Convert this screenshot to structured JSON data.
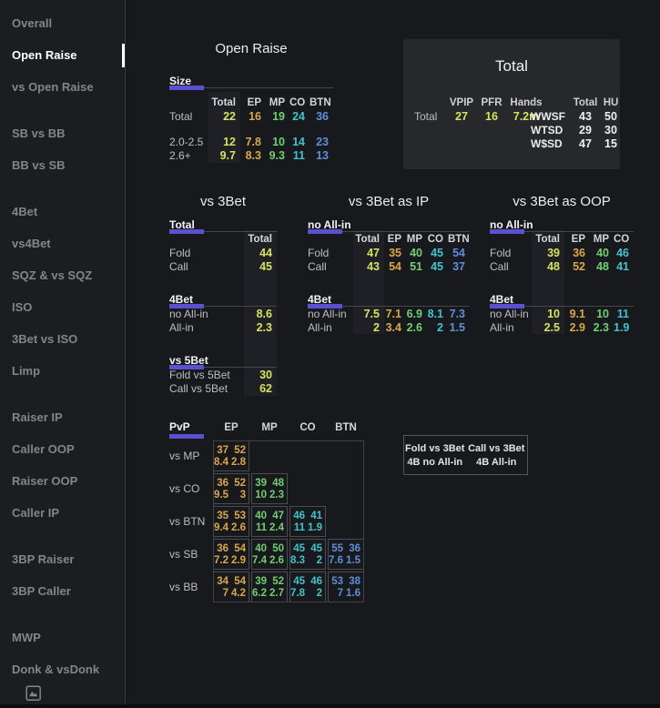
{
  "colors": {
    "accent": "#5a50d2",
    "total": "#d9e35a",
    "ep": "#d9a845",
    "mp": "#6fd06f",
    "co": "#3fc5cd",
    "btn": "#5b90d9"
  },
  "sidebar": {
    "footer_icon": "image-icon",
    "groups": [
      {
        "items": [
          {
            "label": "Overall",
            "active": false
          },
          {
            "label": "Open Raise",
            "active": true
          },
          {
            "label": "vs Open Raise",
            "active": false
          }
        ]
      },
      {
        "items": [
          {
            "label": "SB vs BB",
            "active": false
          },
          {
            "label": "BB vs SB",
            "active": false
          }
        ]
      },
      {
        "items": [
          {
            "label": "4Bet",
            "active": false
          },
          {
            "label": "vs4Bet",
            "active": false
          },
          {
            "label": "SQZ & vs SQZ",
            "active": false
          },
          {
            "label": "ISO",
            "active": false
          },
          {
            "label": "3Bet vs ISO",
            "active": false
          },
          {
            "label": "Limp",
            "active": false
          }
        ]
      },
      {
        "items": [
          {
            "label": "Raiser IP",
            "active": false
          },
          {
            "label": "Caller OOP",
            "active": false
          },
          {
            "label": "Raiser OOP",
            "active": false
          },
          {
            "label": "Caller IP",
            "active": false
          }
        ]
      },
      {
        "items": [
          {
            "label": "3BP Raiser",
            "active": false
          },
          {
            "label": "3BP Caller",
            "active": false
          }
        ]
      },
      {
        "items": [
          {
            "label": "MWP",
            "active": false
          },
          {
            "label": "Donk & vsDonk",
            "active": false
          }
        ]
      }
    ]
  },
  "open_raise": {
    "title": "Open Raise",
    "section": "Size",
    "columns": [
      "Total",
      "EP",
      "MP",
      "CO",
      "BTN"
    ],
    "rows": [
      {
        "label": "Total",
        "values": [
          "22",
          "16",
          "19",
          "24",
          "36"
        ],
        "gap_after": true
      },
      {
        "label": "2.0-2.5",
        "values": [
          "12",
          "7.8",
          "10",
          "14",
          "23"
        ]
      },
      {
        "label": "2.6+",
        "values": [
          "9.7",
          "8.3",
          "9.3",
          "11",
          "13"
        ]
      }
    ]
  },
  "total_panel": {
    "title": "Total",
    "left": {
      "row_label": "Total",
      "columns": [
        "VPIP",
        "PFR",
        "Hands"
      ],
      "values": [
        "27",
        "16",
        "7.2m"
      ]
    },
    "right": {
      "columns": [
        "Total",
        "HU"
      ],
      "rows": [
        {
          "label": "WWSF",
          "values": [
            "43",
            "50"
          ]
        },
        {
          "label": "WTSD",
          "values": [
            "29",
            "30"
          ]
        },
        {
          "label": "W$SD",
          "values": [
            "47",
            "15"
          ]
        }
      ]
    }
  },
  "vs_3bet": {
    "title": "vs 3Bet",
    "sections": [
      {
        "label": "Total",
        "header": "Total",
        "rows": [
          {
            "label": "Fold",
            "value": "44"
          },
          {
            "label": "Call",
            "value": "45"
          }
        ]
      },
      {
        "label": "4Bet",
        "rows": [
          {
            "label": "no All-in",
            "value": "8.6"
          },
          {
            "label": "All-in",
            "value": "2.3"
          }
        ]
      },
      {
        "label": "vs 5Bet",
        "rows": [
          {
            "label": "Fold vs 5Bet",
            "value": "30"
          },
          {
            "label": "Call vs 5Bet",
            "value": "62"
          }
        ]
      }
    ]
  },
  "vs_3bet_ip": {
    "title": "vs 3Bet as IP",
    "sections": [
      {
        "label": "no All-in",
        "columns": [
          "Total",
          "EP",
          "MP",
          "CO",
          "BTN"
        ],
        "rows": [
          {
            "label": "Fold",
            "values": [
              "47",
              "35",
              "40",
              "45",
              "54"
            ]
          },
          {
            "label": "Call",
            "values": [
              "43",
              "54",
              "51",
              "45",
              "37"
            ]
          }
        ]
      },
      {
        "label": "4Bet",
        "rows": [
          {
            "label": "no All-in",
            "values": [
              "7.5",
              "7.1",
              "6.9",
              "8.1",
              "7.3"
            ]
          },
          {
            "label": "All-in",
            "values": [
              "2",
              "3.4",
              "2.6",
              "2",
              "1.5"
            ]
          }
        ]
      }
    ]
  },
  "vs_3bet_oop": {
    "title": "vs 3Bet as OOP",
    "sections": [
      {
        "label": "no All-in",
        "columns": [
          "Total",
          "EP",
          "MP",
          "CO"
        ],
        "rows": [
          {
            "label": "Fold",
            "values": [
              "39",
              "36",
              "40",
              "46"
            ]
          },
          {
            "label": "Call",
            "values": [
              "48",
              "52",
              "48",
              "41"
            ]
          }
        ]
      },
      {
        "label": "4Bet",
        "rows": [
          {
            "label": "no All-in",
            "values": [
              "10",
              "9.1",
              "10",
              "11"
            ]
          },
          {
            "label": "All-in",
            "values": [
              "2.5",
              "2.9",
              "2.3",
              "1.9"
            ]
          }
        ]
      }
    ]
  },
  "pvp": {
    "label": "PvP",
    "columns": [
      "EP",
      "MP",
      "CO",
      "BTN"
    ],
    "rows": [
      {
        "label": "vs MP",
        "cells": [
          {
            "top": [
              "37",
              "52"
            ],
            "bottom": [
              "8.4",
              "2.8"
            ]
          },
          null,
          null,
          null
        ]
      },
      {
        "label": "vs CO",
        "cells": [
          {
            "top": [
              "36",
              "52"
            ],
            "bottom": [
              "9.5",
              "3"
            ]
          },
          {
            "top": [
              "39",
              "48"
            ],
            "bottom": [
              "10",
              "2.3"
            ]
          },
          null,
          null
        ]
      },
      {
        "label": "vs BTN",
        "cells": [
          {
            "top": [
              "35",
              "53"
            ],
            "bottom": [
              "9.4",
              "2.6"
            ]
          },
          {
            "top": [
              "40",
              "47"
            ],
            "bottom": [
              "11",
              "2.4"
            ]
          },
          {
            "top": [
              "46",
              "41"
            ],
            "bottom": [
              "11",
              "1.9"
            ]
          },
          null
        ]
      },
      {
        "label": "vs SB",
        "cells": [
          {
            "top": [
              "36",
              "54"
            ],
            "bottom": [
              "7.2",
              "2.9"
            ]
          },
          {
            "top": [
              "40",
              "50"
            ],
            "bottom": [
              "7.4",
              "2.6"
            ]
          },
          {
            "top": [
              "45",
              "45"
            ],
            "bottom": [
              "8.3",
              "2"
            ]
          },
          {
            "top": [
              "55",
              "36"
            ],
            "bottom": [
              "7.6",
              "1.5"
            ]
          }
        ]
      },
      {
        "label": "vs BB",
        "cells": [
          {
            "top": [
              "34",
              "54"
            ],
            "bottom": [
              "7",
              "4.2"
            ]
          },
          {
            "top": [
              "39",
              "52"
            ],
            "bottom": [
              "6.2",
              "2.7"
            ]
          },
          {
            "top": [
              "45",
              "46"
            ],
            "bottom": [
              "7.8",
              "2"
            ]
          },
          {
            "top": [
              "53",
              "38"
            ],
            "bottom": [
              "7",
              "1.6"
            ]
          }
        ]
      }
    ]
  },
  "legend": {
    "cells": [
      [
        "Fold vs 3Bet",
        "Call vs 3Bet"
      ],
      [
        "4B no All-in",
        "4B All-in"
      ]
    ]
  }
}
